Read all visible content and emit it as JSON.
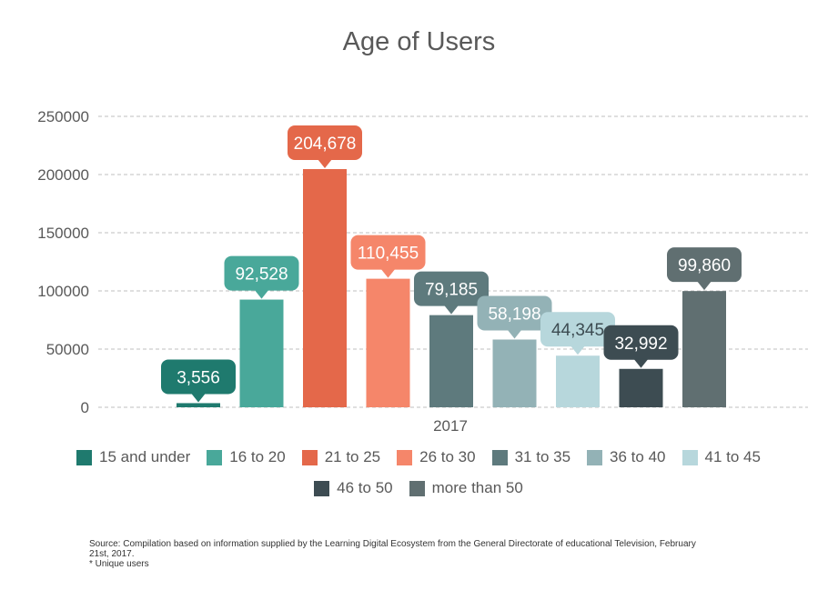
{
  "chart_data": {
    "type": "bar",
    "title": "Age of Users",
    "xlabel": "",
    "ylabel": "",
    "x_category": "2017",
    "ylim": [
      0,
      250000
    ],
    "yticks": [
      0,
      50000,
      100000,
      150000,
      200000,
      250000
    ],
    "grid": true,
    "legend_position": "bottom",
    "series": [
      {
        "name": "15 and under",
        "value": 3556,
        "label": "3,556",
        "color": "#1f7a6e"
      },
      {
        "name": "16 to 20",
        "value": 92528,
        "label": "92,528",
        "color": "#49a89a"
      },
      {
        "name": "21 to 25",
        "value": 204678,
        "label": "204,678",
        "color": "#e4684a"
      },
      {
        "name": "26 to 30",
        "value": 110455,
        "label": "110,455",
        "color": "#f5866a"
      },
      {
        "name": "31 to 35",
        "value": 79185,
        "label": "79,185",
        "color": "#5e7a7d"
      },
      {
        "name": "36 to 40",
        "value": 58198,
        "label": "58,198",
        "color": "#93b2b6"
      },
      {
        "name": "41 to 45",
        "value": 44345,
        "label": "44,345",
        "color": "#b7d7dc"
      },
      {
        "name": "46 to 50",
        "value": 32992,
        "label": "32,992",
        "color": "#3d4c52"
      },
      {
        "name": "more than 50",
        "value": 99860,
        "label": "99,860",
        "color": "#606f71"
      }
    ]
  },
  "source": {
    "line1": "Source: Compilation based on information supplied by the Learning Digital Ecosystem from the General Directorate of educational Television, February 21st, 2017.",
    "line2": "* Unique users"
  }
}
